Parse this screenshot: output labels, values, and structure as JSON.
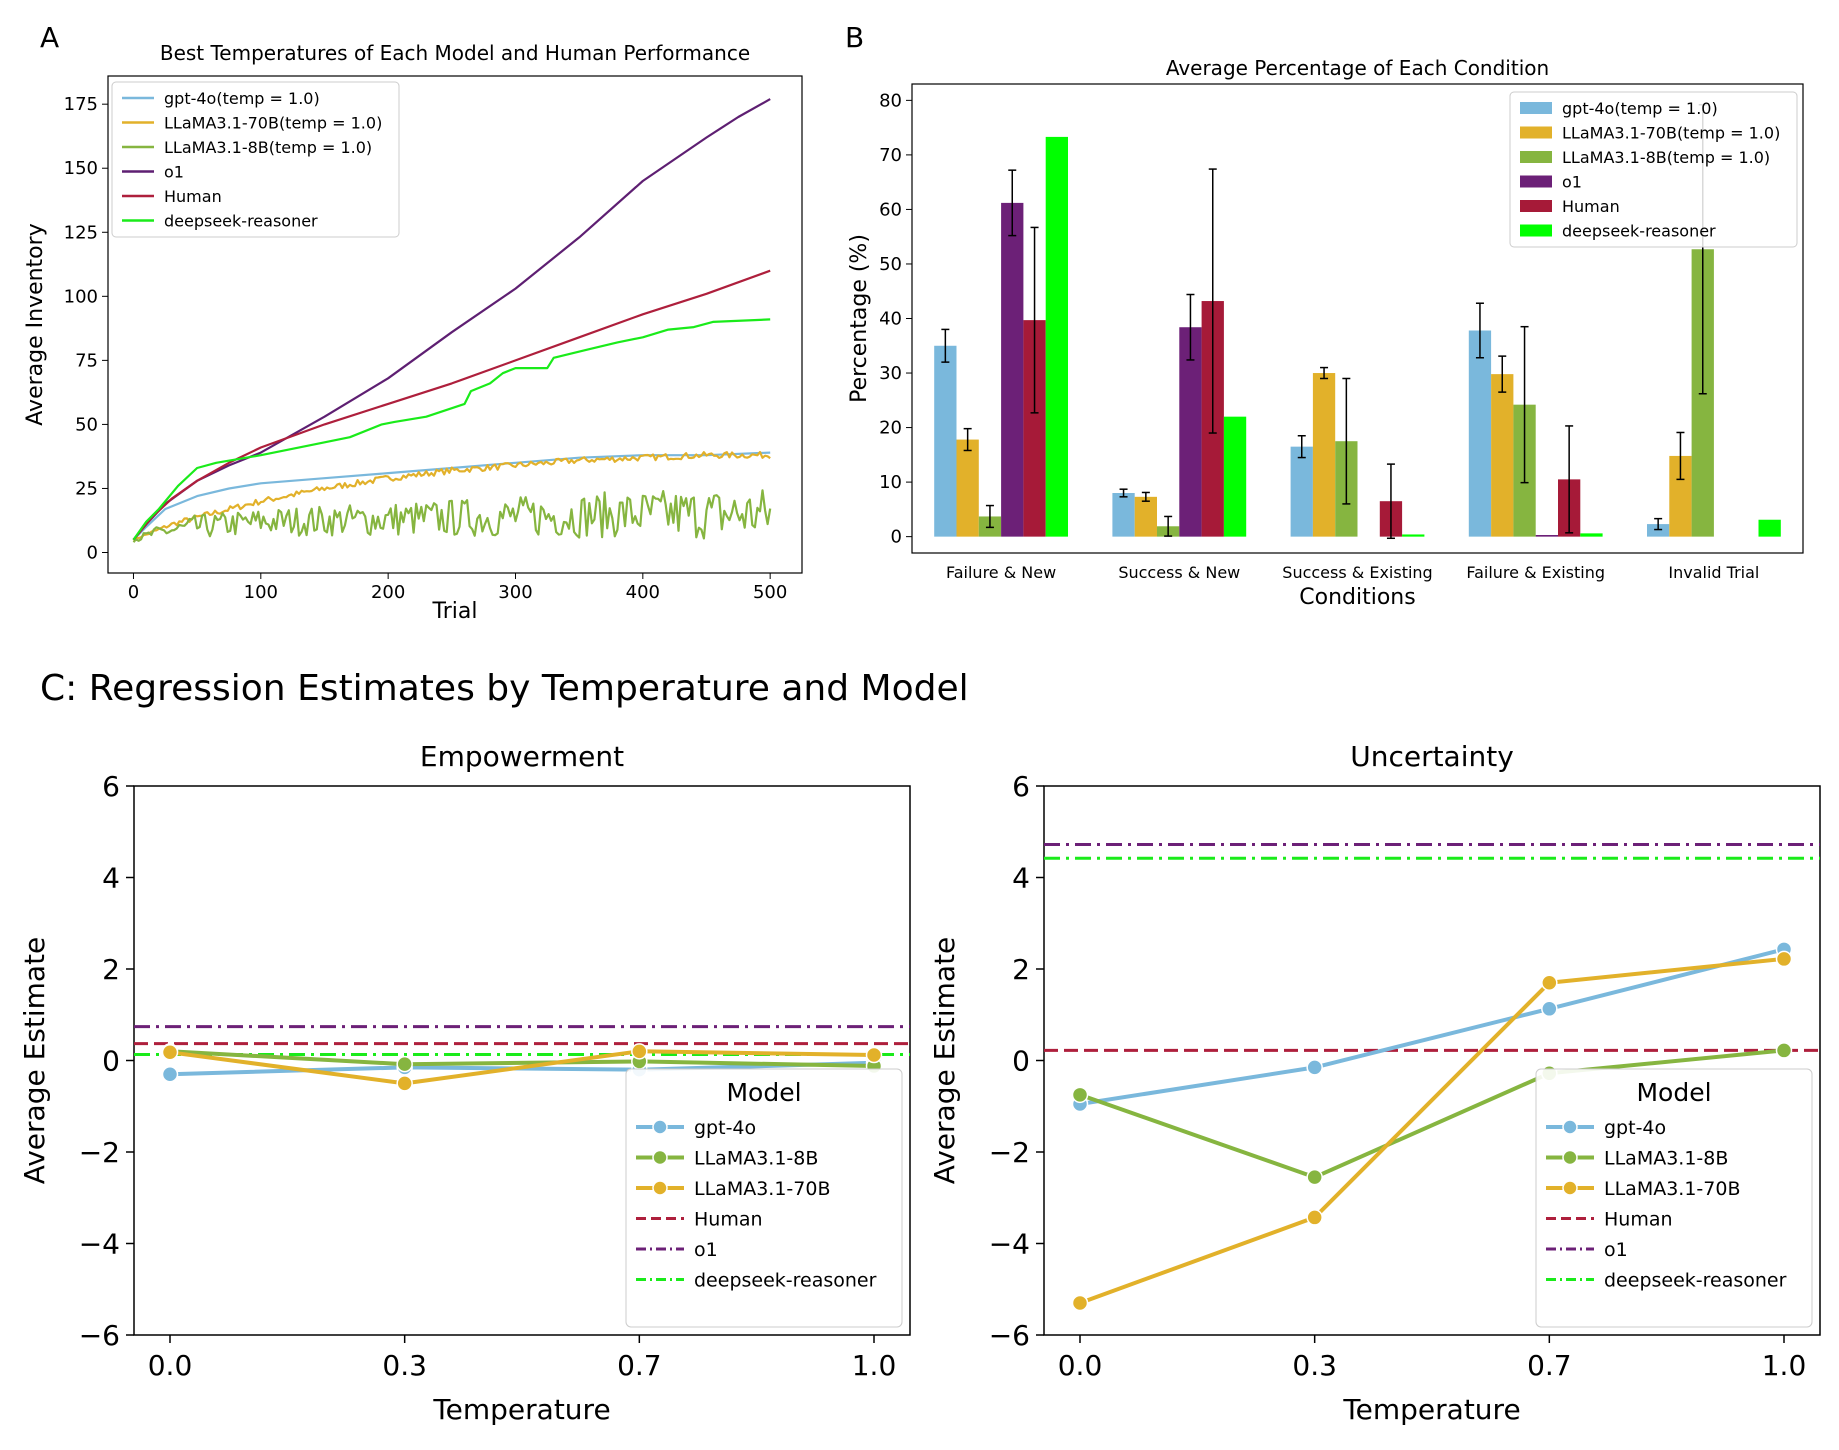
{
  "figure": {
    "panel_a_label": "A",
    "panel_b_label": "B",
    "panel_c_title": "C: Regression Estimates by Temperature and Model"
  },
  "chart_data": [
    {
      "id": "A",
      "type": "line",
      "title": "Best Temperatures of Each Model and Human Performance",
      "xlabel": "Trial",
      "ylabel": "Average Inventory",
      "xlim": [
        -20,
        525
      ],
      "ylim": [
        -8,
        186
      ],
      "xticks": [
        0,
        100,
        200,
        300,
        400,
        500
      ],
      "yticks": [
        0,
        25,
        50,
        75,
        100,
        125,
        150,
        175
      ],
      "legend": "top-left",
      "series": [
        {
          "name": "gpt-4o(temp = 1.0)",
          "color": "#7ab8dc",
          "points": [
            [
              0,
              5
            ],
            [
              10,
              10
            ],
            [
              25,
              17
            ],
            [
              50,
              22
            ],
            [
              75,
              25
            ],
            [
              100,
              27
            ],
            [
              150,
              29
            ],
            [
              200,
              31
            ],
            [
              250,
              33
            ],
            [
              300,
              35
            ],
            [
              350,
              37
            ],
            [
              400,
              38
            ],
            [
              450,
              38
            ],
            [
              500,
              39
            ]
          ]
        },
        {
          "name": "LLaMA3.1-70B(temp = 1.0)",
          "color": "#e2b12a",
          "noisy": 1.2,
          "points": [
            [
              0,
              5
            ],
            [
              15,
              8
            ],
            [
              30,
              11
            ],
            [
              60,
              15
            ],
            [
              100,
              20
            ],
            [
              150,
              25
            ],
            [
              200,
              29
            ],
            [
              250,
              32
            ],
            [
              300,
              34
            ],
            [
              350,
              36
            ],
            [
              400,
              37
            ],
            [
              450,
              38
            ],
            [
              500,
              38
            ]
          ]
        },
        {
          "name": "LLaMA3.1-8B(temp = 1.0)",
          "color": "#86b540",
          "noisy": 4,
          "points": [
            [
              0,
              5
            ],
            [
              20,
              8
            ],
            [
              50,
              10
            ],
            [
              100,
              12
            ],
            [
              200,
              13
            ],
            [
              300,
              14
            ],
            [
              400,
              15
            ],
            [
              500,
              15
            ]
          ]
        },
        {
          "name": "o1",
          "color": "#5e1f72",
          "points": [
            [
              0,
              5
            ],
            [
              10,
              11
            ],
            [
              25,
              19
            ],
            [
              50,
              28
            ],
            [
              75,
              34
            ],
            [
              100,
              39
            ],
            [
              150,
              53
            ],
            [
              200,
              68
            ],
            [
              250,
              86
            ],
            [
              300,
              103
            ],
            [
              350,
              123
            ],
            [
              400,
              145
            ],
            [
              450,
              162
            ],
            [
              475,
              170
            ],
            [
              500,
              177
            ]
          ]
        },
        {
          "name": "Human",
          "color": "#ae1f3c",
          "points": [
            [
              0,
              5
            ],
            [
              15,
              14
            ],
            [
              30,
              21
            ],
            [
              50,
              28
            ],
            [
              75,
              35
            ],
            [
              100,
              41
            ],
            [
              150,
              50
            ],
            [
              200,
              58
            ],
            [
              250,
              66
            ],
            [
              300,
              75
            ],
            [
              350,
              84
            ],
            [
              400,
              93
            ],
            [
              450,
              101
            ],
            [
              500,
              110
            ]
          ]
        },
        {
          "name": "deepseek-reasoner",
          "color": "#1aeb1a",
          "points": [
            [
              0,
              5
            ],
            [
              10,
              12
            ],
            [
              20,
              17
            ],
            [
              35,
              26
            ],
            [
              50,
              33
            ],
            [
              65,
              35
            ],
            [
              100,
              38
            ],
            [
              140,
              42
            ],
            [
              170,
              45
            ],
            [
              195,
              50
            ],
            [
              205,
              51
            ],
            [
              230,
              53
            ],
            [
              260,
              58
            ],
            [
              265,
              63
            ],
            [
              280,
              66
            ],
            [
              290,
              70
            ],
            [
              300,
              72
            ],
            [
              325,
              72
            ],
            [
              330,
              76
            ],
            [
              355,
              79
            ],
            [
              380,
              82
            ],
            [
              400,
              84
            ],
            [
              420,
              87
            ],
            [
              440,
              88
            ],
            [
              455,
              90
            ],
            [
              500,
              91
            ]
          ]
        }
      ]
    },
    {
      "id": "B",
      "type": "bar",
      "title": "Average Percentage of Each Condition",
      "xlabel": "Conditions",
      "ylabel": "Percentage (%)",
      "ylim": [
        -3,
        83
      ],
      "yticks": [
        0,
        10,
        20,
        30,
        40,
        50,
        60,
        70,
        80
      ],
      "legend": "top-right",
      "categories": [
        "Failure & New",
        "Success & New",
        "Success & Existing",
        "Failure & Existing",
        "Invalid Trial"
      ],
      "series": [
        {
          "name": "gpt-4o(temp = 1.0)",
          "color": "#7ab8dc",
          "values": [
            35,
            8,
            16.5,
            37.8,
            2.3
          ],
          "errors": [
            3,
            0.7,
            2,
            5,
            1
          ]
        },
        {
          "name": "LLaMA3.1-70B(temp = 1.0)",
          "color": "#e2b12a",
          "values": [
            17.8,
            7.3,
            30,
            29.8,
            14.8
          ],
          "errors": [
            2,
            0.8,
            1,
            3.3,
            4.3
          ]
        },
        {
          "name": "LLaMA3.1-8B(temp = 1.0)",
          "color": "#86b540",
          "values": [
            3.7,
            1.9,
            17.5,
            24.2,
            52.7
          ],
          "errors": [
            2,
            1.8,
            11.5,
            14.3,
            26.5
          ]
        },
        {
          "name": "o1",
          "color": "#6c2077",
          "values": [
            61.2,
            38.4,
            0,
            0.3,
            0
          ],
          "errors": [
            6,
            6,
            0,
            0,
            0
          ]
        },
        {
          "name": "Human",
          "color": "#a61a38",
          "values": [
            39.7,
            43.2,
            6.5,
            10.5,
            0
          ],
          "errors": [
            17,
            24.2,
            6.8,
            9.8,
            0
          ]
        },
        {
          "name": "deepseek-reasoner",
          "color": "#00ff00",
          "values": [
            73.3,
            22,
            0.4,
            0.6,
            3.1
          ],
          "errors": [
            0,
            0,
            0,
            0,
            0
          ]
        }
      ]
    },
    {
      "id": "C1",
      "type": "line",
      "title": "Empowerment",
      "xlabel": "Temperature",
      "ylabel": "Average Estimate",
      "categories": [
        "0.0",
        "0.3",
        "0.7",
        "1.0"
      ],
      "ylim": [
        -6,
        6
      ],
      "yticks": [
        -6,
        -4,
        -2,
        0,
        2,
        4,
        6
      ],
      "legend_title": "Model",
      "legend": "lower-right",
      "series": [
        {
          "name": "gpt-4o",
          "color": "#7ab8dc",
          "values": [
            -0.3,
            -0.15,
            -0.2,
            -0.05
          ]
        },
        {
          "name": "LLaMA3.1-8B",
          "color": "#86b540",
          "values": [
            0.2,
            -0.08,
            -0.02,
            -0.12
          ]
        },
        {
          "name": "LLaMA3.1-70B",
          "color": "#e2b12a",
          "values": [
            0.18,
            -0.5,
            0.2,
            0.12
          ]
        }
      ],
      "reference_lines": [
        {
          "name": "Human",
          "color": "#ae1f3c",
          "style": "dashed",
          "value": 0.37
        },
        {
          "name": "o1",
          "color": "#6c2077",
          "style": "dashdot",
          "value": 0.74
        },
        {
          "name": "deepseek-reasoner",
          "color": "#1aeb1a",
          "style": "dashdot",
          "value": 0.13
        }
      ]
    },
    {
      "id": "C2",
      "type": "line",
      "title": "Uncertainty",
      "xlabel": "Temperature",
      "ylabel": "Average Estimate",
      "categories": [
        "0.0",
        "0.3",
        "0.7",
        "1.0"
      ],
      "ylim": [
        -6,
        6
      ],
      "yticks": [
        -6,
        -4,
        -2,
        0,
        2,
        4,
        6
      ],
      "legend_title": "Model",
      "legend": "lower-right",
      "series": [
        {
          "name": "gpt-4o",
          "color": "#7ab8dc",
          "values": [
            -0.95,
            -0.15,
            1.13,
            2.43
          ]
        },
        {
          "name": "LLaMA3.1-8B",
          "color": "#86b540",
          "values": [
            -0.75,
            -2.55,
            -0.28,
            0.22
          ]
        },
        {
          "name": "LLaMA3.1-70B",
          "color": "#e2b12a",
          "values": [
            -5.3,
            -3.43,
            1.7,
            2.22
          ]
        }
      ],
      "reference_lines": [
        {
          "name": "Human",
          "color": "#ae1f3c",
          "style": "dashed",
          "value": 0.22
        },
        {
          "name": "o1",
          "color": "#6c2077",
          "style": "dashdot",
          "value": 4.72
        },
        {
          "name": "deepseek-reasoner",
          "color": "#1aeb1a",
          "style": "dashdot",
          "value": 4.42
        }
      ]
    }
  ]
}
